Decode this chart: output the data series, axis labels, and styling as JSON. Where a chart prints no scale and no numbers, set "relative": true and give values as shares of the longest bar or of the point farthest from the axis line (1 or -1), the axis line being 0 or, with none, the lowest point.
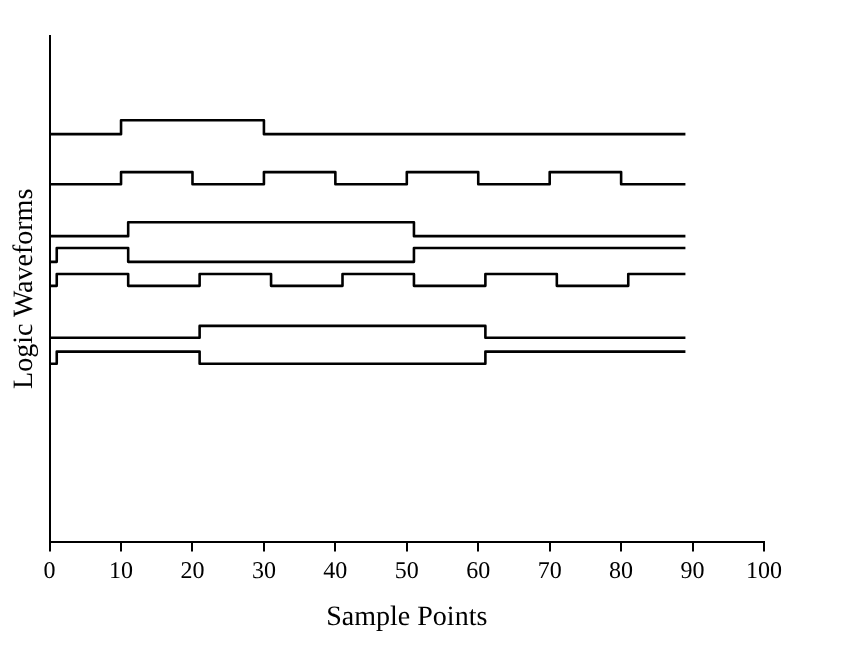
{
  "chart_data": {
    "type": "step",
    "xlabel": "Sample Points",
    "ylabel": "Logic Waveforms",
    "relative": true,
    "xlim": [
      0,
      100
    ],
    "xticks": [
      0,
      10,
      20,
      30,
      40,
      50,
      60,
      70,
      80,
      90,
      100
    ],
    "grid": false,
    "legend": false,
    "marker": "none",
    "line_style": "solid",
    "series": [
      {
        "color": "#000000",
        "x": [
          0,
          10,
          30,
          89
        ],
        "values": [
          0.967,
          1,
          0.967,
          0.967
        ]
      },
      {
        "color": "#000000",
        "x": [
          0,
          10,
          20,
          30,
          40,
          50,
          60,
          70,
          80,
          89
        ],
        "values": [
          0.848,
          0.877,
          0.848,
          0.877,
          0.848,
          0.877,
          0.848,
          0.877,
          0.848,
          0.848
        ]
      },
      {
        "color": "#000000",
        "x": [
          0,
          11,
          51,
          89
        ],
        "values": [
          0.725,
          0.758,
          0.725,
          0.725
        ]
      },
      {
        "color": "#000000",
        "x": [
          0,
          1,
          11,
          51,
          89
        ],
        "values": [
          0.664,
          0.697,
          0.664,
          0.697,
          0.697
        ]
      },
      {
        "color": "#000000",
        "x": [
          0,
          1,
          11,
          21,
          31,
          41,
          51,
          61,
          71,
          81,
          89
        ],
        "values": [
          0.607,
          0.635,
          0.607,
          0.635,
          0.607,
          0.635,
          0.607,
          0.635,
          0.607,
          0.635,
          0.635
        ]
      },
      {
        "color": "#000000",
        "x": [
          0,
          21,
          61,
          89
        ],
        "values": [
          0.484,
          0.512,
          0.484,
          0.484
        ]
      },
      {
        "color": "#000000",
        "x": [
          0,
          1,
          21,
          61,
          89
        ],
        "values": [
          0.422,
          0.451,
          0.422,
          0.451,
          0.451
        ]
      }
    ]
  }
}
